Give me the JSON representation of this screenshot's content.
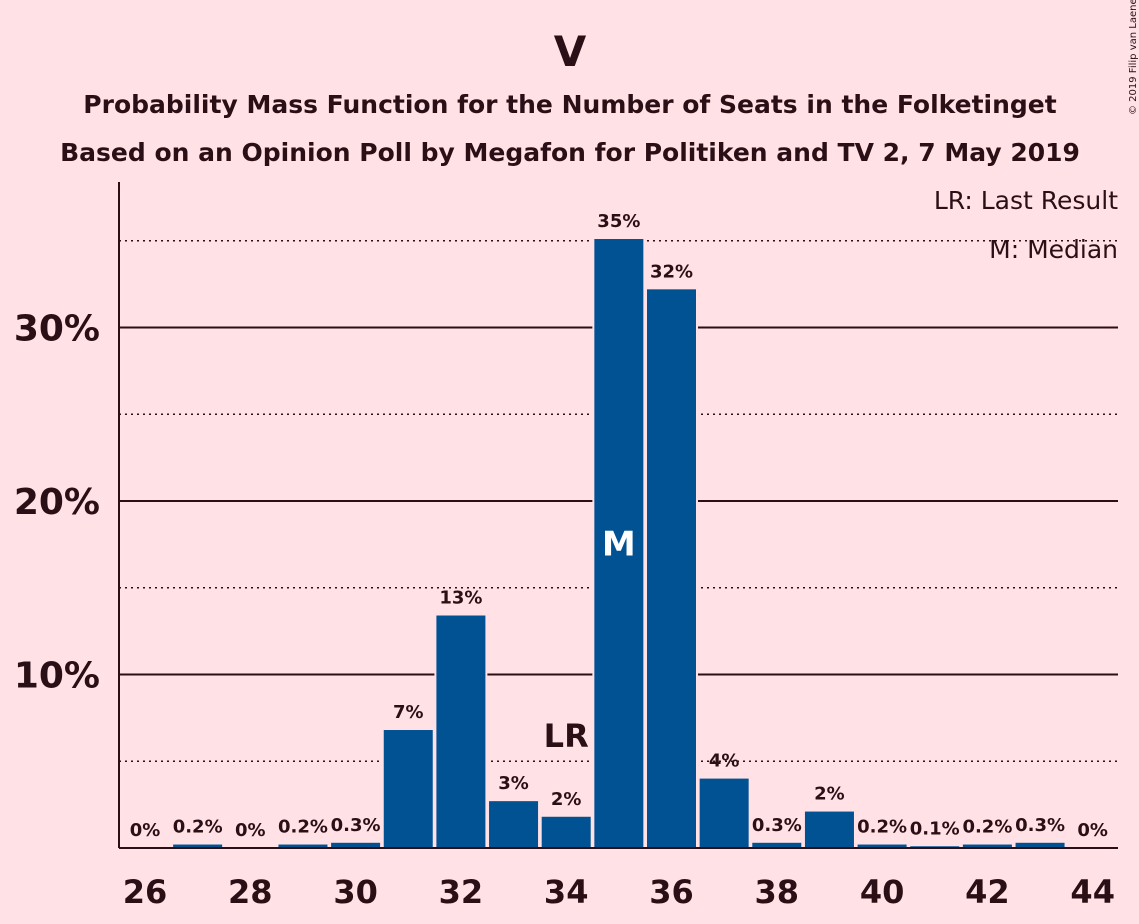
{
  "chart_data": {
    "type": "bar",
    "title": "V",
    "subtitle": "Probability Mass Function for the Number of Seats in the Folketinget",
    "subtitle2": "Based on an Opinion Poll by Megafon for Politiken and TV 2, 7 May 2019",
    "copyright": "© 2019 Filip van Laenen",
    "xlabel": "",
    "ylabel": "",
    "ylim": [
      0,
      38
    ],
    "yticks": [
      10,
      20,
      30
    ],
    "ytick_labels": [
      "10%",
      "20%",
      "30%"
    ],
    "minor_gridlines": [
      5,
      15,
      25,
      35
    ],
    "x": [
      26,
      27,
      28,
      29,
      30,
      31,
      32,
      33,
      34,
      35,
      36,
      37,
      38,
      39,
      40,
      41,
      42,
      43,
      44
    ],
    "xtick_values": [
      26,
      28,
      30,
      32,
      34,
      36,
      38,
      40,
      42,
      44
    ],
    "xtick_labels": [
      "26",
      "28",
      "30",
      "32",
      "34",
      "36",
      "38",
      "40",
      "42",
      "44"
    ],
    "values": [
      0,
      0.2,
      0,
      0.2,
      0.3,
      6.8,
      13.4,
      2.7,
      1.8,
      35.1,
      32.2,
      4.0,
      0.3,
      2.1,
      0.2,
      0.1,
      0.2,
      0.3,
      0
    ],
    "value_labels": [
      "0%",
      "0.2%",
      "0%",
      "0.2%",
      "0.3%",
      "7%",
      "13%",
      "3%",
      "2%",
      "35%",
      "32%",
      "4%",
      "0.3%",
      "2%",
      "0.2%",
      "0.1%",
      "0.2%",
      "0.3%",
      "0%"
    ],
    "last_result_seat": 34,
    "median_seat": 35,
    "last_result_marker": "LR",
    "median_marker": "M",
    "legend": [
      "LR: Last Result",
      "M: Median"
    ],
    "legend_position": "top-right",
    "bar_color": "#005293",
    "background_color": "#ffe1e6",
    "grid": true
  }
}
